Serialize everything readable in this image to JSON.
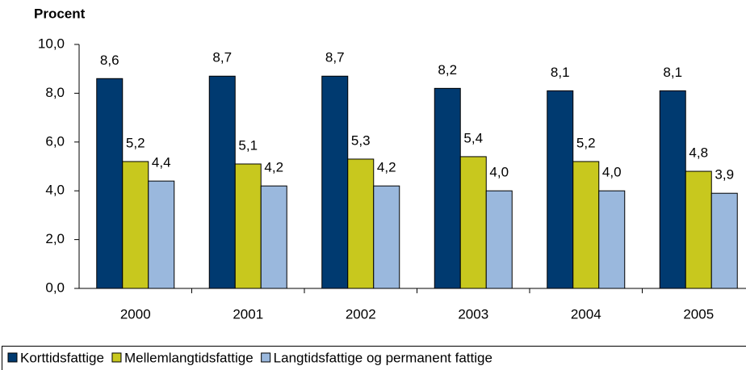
{
  "chart_data": {
    "type": "bar",
    "title": "Procent",
    "categories": [
      "2000",
      "2001",
      "2002",
      "2003",
      "2004",
      "2005"
    ],
    "series": [
      {
        "name": "Korttidsfattige",
        "color": "#003a70",
        "values": [
          8.6,
          8.7,
          8.7,
          8.2,
          8.1,
          8.1
        ],
        "value_labels": [
          "8,6",
          "8,7",
          "8,7",
          "8,2",
          "8,1",
          "8,1"
        ]
      },
      {
        "name": "Mellemlangtidsfattige",
        "color": "#c8c81e",
        "values": [
          5.2,
          5.1,
          5.3,
          5.4,
          5.2,
          4.8
        ],
        "value_labels": [
          "5,2",
          "5,1",
          "5,3",
          "5,4",
          "5,2",
          "4,8"
        ]
      },
      {
        "name": "Langtidsfattige og permanent fattige",
        "color": "#9ab8dd",
        "values": [
          4.4,
          4.2,
          4.2,
          4.0,
          4.0,
          3.9
        ],
        "value_labels": [
          "4,4",
          "4,2",
          "4,2",
          "4,0",
          "4,0",
          "3,9"
        ]
      }
    ],
    "ylim": [
      0,
      10
    ],
    "yticks": [
      {
        "value": 0,
        "label": "0,0"
      },
      {
        "value": 2,
        "label": "2,0"
      },
      {
        "value": 4,
        "label": "4,0"
      },
      {
        "value": 6,
        "label": "6,0"
      },
      {
        "value": 8,
        "label": "8,0"
      },
      {
        "value": 10,
        "label": "10,0"
      }
    ],
    "grid": false,
    "legend": "bottom"
  }
}
